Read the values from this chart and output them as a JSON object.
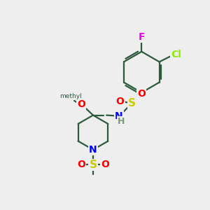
{
  "bg": "#eeeeee",
  "bond_color": "#2d5a3d",
  "colors": {
    "F": "#ee00ee",
    "Cl": "#88ee00",
    "S": "#cccc00",
    "O": "#ff0000",
    "N": "#0000ff",
    "H": "#7a9a7a",
    "C": "#2d5a3d"
  },
  "figsize": [
    3.0,
    3.0
  ],
  "dpi": 100
}
